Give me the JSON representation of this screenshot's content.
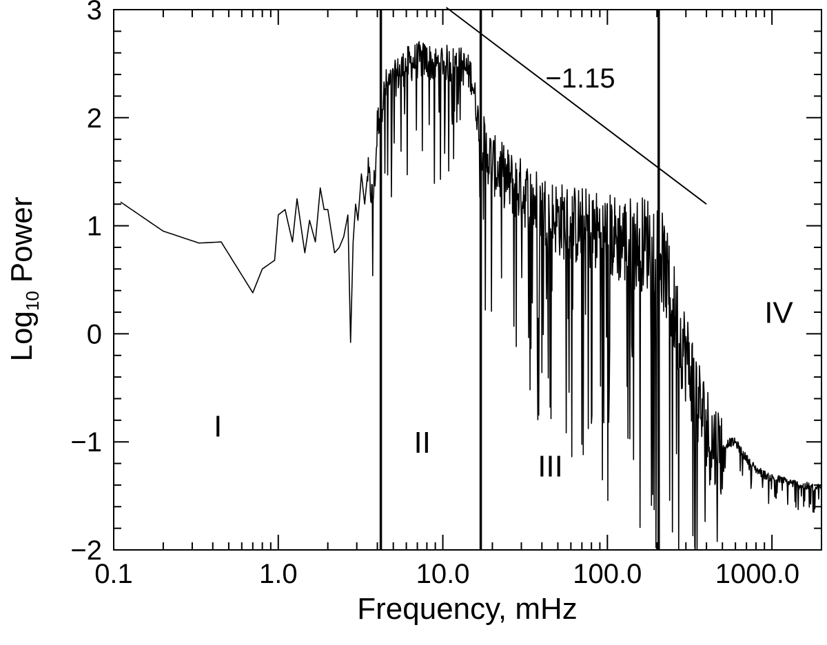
{
  "chart_data": {
    "type": "line",
    "xlabel": "Frequency, mHz",
    "ylabel": "Log",
    "ylabel_subscript": "10",
    "ylabel_suffix": "Power",
    "x_scale": "log",
    "xlim": [
      0.1,
      2000
    ],
    "ylim": [
      -2,
      3
    ],
    "x_tick_values": [
      0.1,
      1,
      10,
      100,
      1000
    ],
    "x_tick_labels": [
      "0.1",
      "1.0",
      "10.0",
      "100.0",
      "1000.0"
    ],
    "y_tick_values": [
      -2,
      -1,
      0,
      1,
      2,
      3
    ],
    "y_tick_labels": [
      "−2",
      "−1",
      "0",
      "1",
      "2",
      "3"
    ],
    "grid": false,
    "series": [
      {
        "x": [
          0.11,
          0.2,
          0.33,
          0.45,
          0.7,
          0.8,
          0.95,
          1.0,
          1.1,
          1.22,
          1.3,
          1.45,
          1.55,
          1.68,
          1.8,
          1.9,
          2.0,
          2.2,
          2.35,
          2.5,
          2.65,
          2.75,
          2.85,
          2.95,
          3.05,
          3.2,
          3.35,
          3.5,
          3.6,
          3.75,
          3.9,
          4.0,
          4.2,
          4.5,
          5.0,
          5.5,
          6.0,
          7.0,
          8.0,
          9.0,
          10.0,
          11.0,
          12.0,
          13.0,
          14.0,
          15.0,
          16.0,
          17.0,
          18.0,
          20.0,
          25.0,
          30.0,
          40.0,
          50.0,
          60.0,
          80.0,
          100.0,
          130.0,
          160.0,
          190.0,
          210.0,
          230.0,
          250.0,
          280.0,
          320.0,
          360.0,
          400.0,
          450.0,
          500.0,
          550.0,
          600.0,
          650.0,
          700.0,
          800.0,
          900.0,
          1000.0,
          1200.0,
          1500.0,
          1800.0,
          2000.0
        ],
        "y": [
          1.22,
          0.95,
          0.84,
          0.85,
          0.38,
          0.6,
          0.68,
          1.1,
          1.15,
          0.85,
          1.25,
          0.75,
          1.05,
          0.85,
          1.35,
          1.15,
          1.15,
          0.75,
          0.8,
          0.9,
          1.1,
          -0.08,
          0.85,
          1.2,
          1.05,
          1.48,
          1.2,
          1.5,
          1.4,
          1.25,
          1.55,
          1.95,
          2.1,
          2.3,
          2.35,
          2.45,
          2.5,
          2.55,
          2.55,
          2.5,
          2.55,
          2.5,
          2.52,
          2.5,
          2.45,
          2.4,
          2.1,
          1.85,
          1.75,
          1.6,
          1.45,
          1.35,
          1.2,
          1.1,
          1.05,
          1.0,
          0.95,
          0.9,
          0.88,
          0.9,
          0.8,
          0.55,
          0.3,
          0.0,
          -0.3,
          -0.6,
          -0.85,
          -1.0,
          -1.05,
          -1.0,
          -1.0,
          -1.08,
          -1.15,
          -1.25,
          -1.3,
          -1.33,
          -1.36,
          -1.4,
          -1.42,
          -1.43
        ],
        "noise": "spiky"
      }
    ],
    "vertical_lines_x": [
      4.2,
      17.0,
      205.0
    ],
    "region_labels": [
      {
        "text": "I",
        "x": 0.43,
        "y": -0.95
      },
      {
        "text": "II",
        "x": 7.5,
        "y": -1.1
      },
      {
        "text": "III",
        "x": 45.0,
        "y": -1.32
      },
      {
        "text": "IV",
        "x": 1100.0,
        "y": 0.1
      }
    ],
    "reference_line": {
      "slope": -1.15,
      "label": "−1.15",
      "x": [
        10.5,
        400.0
      ],
      "y": [
        3.02,
        1.2
      ],
      "label_at": {
        "x": 42.0,
        "y": 2.28
      }
    }
  }
}
